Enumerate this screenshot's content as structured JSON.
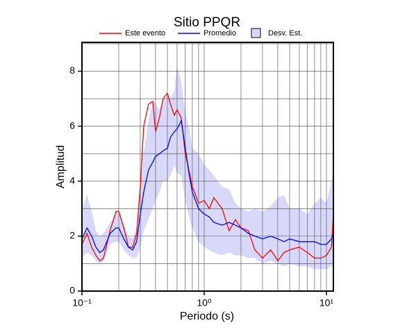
{
  "chart_data": {
    "type": "line",
    "title": "Sitio PPQR",
    "x_label": "Periodo (s)",
    "y_label": "Amplitud",
    "xscale": "log",
    "grid": true,
    "xlim": [
      0.1,
      11.4
    ],
    "ylim": [
      0,
      9.05
    ],
    "xticks": [
      {
        "value": 0.1,
        "label": "10⁻¹"
      },
      {
        "value": 1,
        "label": "10⁰"
      },
      {
        "value": 10,
        "label": "10¹"
      }
    ],
    "xminor": [
      0.2,
      0.3,
      0.4,
      0.5,
      0.6,
      0.7,
      0.8,
      0.9,
      2,
      3,
      4,
      5,
      6,
      7,
      8,
      9
    ],
    "yticks": [
      0,
      2,
      4,
      6,
      8
    ],
    "yminor": [
      1,
      3,
      5,
      7,
      9
    ],
    "x": [
      0.1,
      0.11,
      0.12,
      0.13,
      0.14,
      0.15,
      0.17,
      0.19,
      0.2,
      0.22,
      0.24,
      0.26,
      0.28,
      0.3,
      0.32,
      0.35,
      0.38,
      0.4,
      0.43,
      0.46,
      0.5,
      0.53,
      0.57,
      0.6,
      0.65,
      0.7,
      0.75,
      0.8,
      0.9,
      1.0,
      1.1,
      1.2,
      1.4,
      1.6,
      1.8,
      2.0,
      2.3,
      2.6,
      3.0,
      3.5,
      4.0,
      4.5,
      5,
      6,
      7,
      8,
      9,
      10,
      11,
      11.4
    ],
    "series": [
      {
        "name": "Este evento",
        "color": "#ff0000",
        "values": [
          1.7,
          2.1,
          1.6,
          1.3,
          1.1,
          1.2,
          2.2,
          2.9,
          2.9,
          2.3,
          1.6,
          1.6,
          2.1,
          3.8,
          6.0,
          6.8,
          6.9,
          5.8,
          6.3,
          7.0,
          7.2,
          6.8,
          6.4,
          6.6,
          6.3,
          5.0,
          4.4,
          3.8,
          3.2,
          3.3,
          3.0,
          3.4,
          3.0,
          2.2,
          2.6,
          2.3,
          2.2,
          1.5,
          1.2,
          1.5,
          1.1,
          1.4,
          1.5,
          1.6,
          1.4,
          1.2,
          1.2,
          1.3,
          1.6,
          2.8
        ]
      },
      {
        "name": "Promedio",
        "color": "#0000ff",
        "values": [
          1.9,
          2.3,
          2.0,
          1.6,
          1.4,
          1.5,
          2.1,
          2.3,
          2.3,
          1.9,
          1.6,
          1.5,
          1.8,
          2.8,
          3.6,
          4.4,
          4.7,
          4.9,
          5.0,
          5.1,
          5.2,
          5.6,
          5.8,
          5.9,
          6.2,
          5.2,
          4.3,
          3.6,
          3.0,
          2.8,
          2.7,
          2.5,
          2.4,
          2.5,
          2.4,
          2.3,
          2.1,
          2.0,
          1.9,
          2.0,
          1.9,
          1.8,
          1.9,
          1.8,
          1.8,
          1.8,
          1.7,
          1.7,
          1.9,
          2.1
        ]
      },
      {
        "name": "Desv. Est.",
        "color": "#d8d8fa",
        "upper": [
          3.0,
          3.5,
          2.9,
          2.2,
          2.0,
          2.1,
          2.5,
          2.8,
          2.8,
          2.4,
          2.0,
          1.9,
          2.3,
          3.9,
          5.0,
          6.2,
          6.9,
          6.8,
          6.6,
          6.9,
          7.1,
          7.0,
          7.3,
          8.2,
          7.6,
          6.5,
          6.0,
          5.2,
          5.0,
          4.6,
          4.4,
          4.2,
          3.8,
          3.7,
          3.2,
          3.0,
          2.9,
          3.0,
          2.9,
          3.1,
          3.4,
          3.5,
          3.0,
          3.0,
          2.8,
          3.2,
          3.4,
          3.2,
          4.0,
          4.4
        ],
        "lower": [
          1.2,
          1.4,
          1.3,
          1.1,
          1.0,
          1.1,
          1.7,
          1.8,
          1.8,
          1.5,
          1.3,
          1.2,
          1.2,
          1.6,
          2.2,
          2.6,
          3.0,
          3.3,
          3.6,
          4.0,
          4.0,
          4.2,
          4.6,
          4.3,
          4.2,
          3.3,
          2.7,
          2.3,
          1.8,
          1.6,
          1.5,
          1.4,
          1.3,
          1.4,
          1.3,
          1.3,
          1.2,
          1.2,
          1.0,
          1.1,
          1.0,
          0.9,
          1.0,
          0.9,
          0.9,
          0.8,
          0.8,
          0.8,
          0.9,
          1.0
        ]
      }
    ]
  }
}
